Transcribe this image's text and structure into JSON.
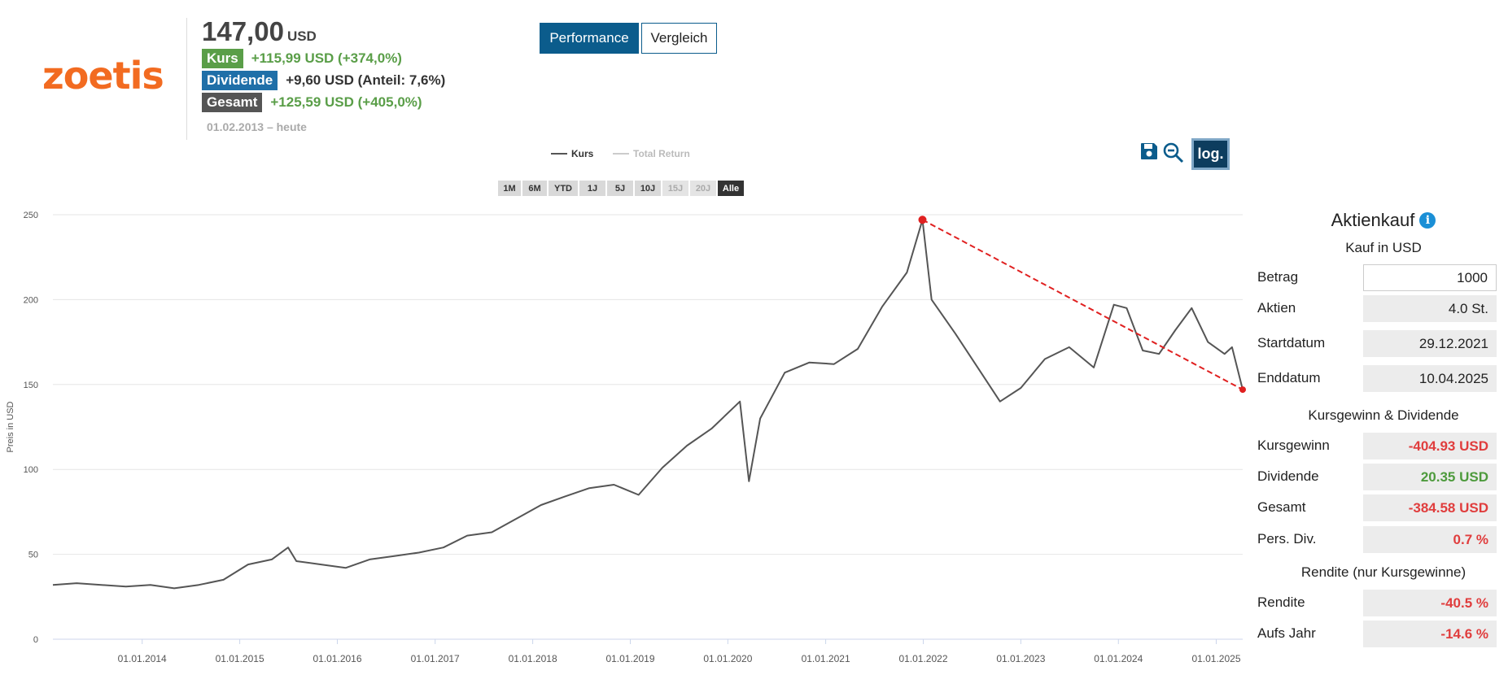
{
  "logo": {
    "text": "zoetis",
    "color": "#f26b21"
  },
  "summary": {
    "price": "147,00",
    "currency": "USD",
    "kurs_label": "Kurs",
    "kurs_value": "+115,99 USD (+374,0%)",
    "div_label": "Dividende",
    "div_value": "+9,60 USD (Anteil: 7,6%)",
    "total_label": "Gesamt",
    "total_value": "+125,59 USD (+405,0%)",
    "range": "01.02.2013 – heute"
  },
  "tabs": {
    "performance": "Performance",
    "compare": "Vergleich"
  },
  "legend": {
    "kurs": "Kurs",
    "total_return": "Total Return"
  },
  "range_buttons": [
    {
      "label": "1M",
      "state": "normal"
    },
    {
      "label": "6M",
      "state": "normal"
    },
    {
      "label": "YTD",
      "state": "normal"
    },
    {
      "label": "1J",
      "state": "normal"
    },
    {
      "label": "5J",
      "state": "normal"
    },
    {
      "label": "10J",
      "state": "normal"
    },
    {
      "label": "15J",
      "state": "disabled"
    },
    {
      "label": "20J",
      "state": "disabled"
    },
    {
      "label": "Alle",
      "state": "active"
    }
  ],
  "toolbar": {
    "save_icon": "save-icon",
    "zoom_icon": "zoom-out-icon",
    "log_label": "log."
  },
  "chart_data": {
    "type": "line",
    "title": "",
    "ylabel": "Preis in USD",
    "xlabel": "",
    "ylim": [
      0,
      250
    ],
    "xlim": [
      "2013-02-01",
      "2025-04-10"
    ],
    "yticks": [
      0,
      50,
      100,
      150,
      200,
      250
    ],
    "xticks": [
      "01.01.2014",
      "01.01.2015",
      "01.01.2016",
      "01.01.2017",
      "01.01.2018",
      "01.01.2019",
      "01.01.2020",
      "01.01.2021",
      "01.01.2022",
      "01.01.2023",
      "01.01.2024",
      "01.01.2025"
    ],
    "grid": "horizontal",
    "line_color": "#555555",
    "series": [
      {
        "name": "Kurs",
        "x": [
          "2013-02-01",
          "2013-05-01",
          "2013-08-01",
          "2013-11-01",
          "2014-02-01",
          "2014-05-01",
          "2014-08-01",
          "2014-11-01",
          "2015-02-01",
          "2015-05-01",
          "2015-07-01",
          "2015-08-01",
          "2015-11-01",
          "2016-02-01",
          "2016-05-01",
          "2016-08-01",
          "2016-11-01",
          "2017-02-01",
          "2017-05-01",
          "2017-08-01",
          "2017-11-01",
          "2018-02-01",
          "2018-05-01",
          "2018-08-01",
          "2018-11-01",
          "2019-02-01",
          "2019-05-01",
          "2019-08-01",
          "2019-11-01",
          "2020-02-15",
          "2020-03-20",
          "2020-05-01",
          "2020-08-01",
          "2020-11-01",
          "2021-02-01",
          "2021-05-01",
          "2021-08-01",
          "2021-11-01",
          "2021-12-29",
          "2022-02-01",
          "2022-05-01",
          "2022-08-01",
          "2022-10-15",
          "2023-01-01",
          "2023-04-01",
          "2023-07-01",
          "2023-10-01",
          "2023-12-15",
          "2024-02-01",
          "2024-04-01",
          "2024-06-01",
          "2024-08-01",
          "2024-10-01",
          "2024-12-01",
          "2025-02-01",
          "2025-03-01",
          "2025-04-10"
        ],
        "y": [
          32,
          33,
          32,
          31,
          32,
          30,
          32,
          35,
          44,
          47,
          54,
          46,
          44,
          42,
          47,
          49,
          51,
          54,
          61,
          63,
          71,
          79,
          84,
          89,
          91,
          85,
          101,
          114,
          124,
          140,
          93,
          130,
          157,
          163,
          162,
          171,
          196,
          216,
          247,
          200,
          180,
          158,
          140,
          148,
          165,
          172,
          160,
          197,
          195,
          170,
          168,
          182,
          195,
          175,
          168,
          172,
          147
        ]
      }
    ],
    "annotation": {
      "type": "trend-line",
      "color": "#e02020",
      "start": {
        "x": "2021-12-29",
        "y": 247
      },
      "end": {
        "x": "2025-04-10",
        "y": 147
      }
    }
  },
  "panel": {
    "title": "Aktienkauf",
    "subtitle": "Kauf in USD",
    "betrag_label": "Betrag",
    "betrag_value": "1000",
    "aktien_label": "Aktien",
    "aktien_value": "4.0 St.",
    "start_label": "Startdatum",
    "start_value": "29.12.2021",
    "end_label": "Enddatum",
    "end_value": "10.04.2025",
    "section2": "Kursgewinn & Dividende",
    "kursgewinn_label": "Kursgewinn",
    "kursgewinn_value": "-404.93 USD",
    "dividende_label": "Dividende",
    "dividende_value": "20.35 USD",
    "gesamt_label": "Gesamt",
    "gesamt_value": "-384.58 USD",
    "persdiv_label": "Pers. Div.",
    "persdiv_value": "0.7 %",
    "section3": "Rendite (nur Kursgewinne)",
    "rendite_label": "Rendite",
    "rendite_value": "-40.5 %",
    "aufsjahr_label": "Aufs Jahr",
    "aufsjahr_value": "-14.6 %"
  }
}
